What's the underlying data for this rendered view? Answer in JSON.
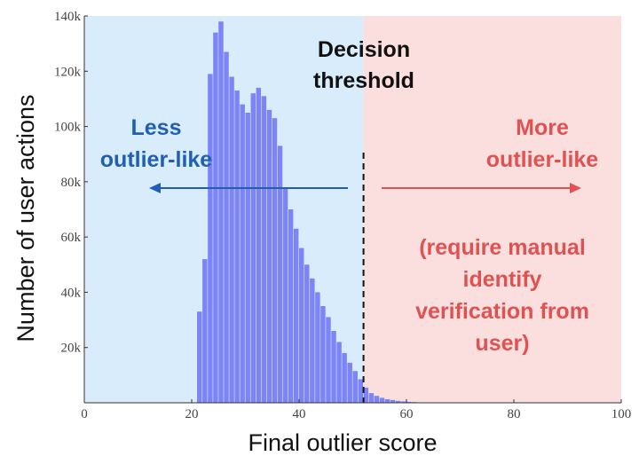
{
  "chart_data": {
    "type": "bar",
    "xlabel": "Final outlier score",
    "ylabel": "Number of user actions",
    "xlim": [
      0,
      100
    ],
    "ylim": [
      0,
      140000
    ],
    "x_ticks": [
      "0",
      "20",
      "40",
      "60",
      "80",
      "100"
    ],
    "y_ticks": [
      "20k",
      "40k",
      "60k",
      "80k",
      "100k",
      "120k",
      "140k"
    ],
    "y_tick_values": [
      20000,
      40000,
      60000,
      80000,
      100000,
      120000,
      140000
    ],
    "bin_width": 1,
    "bins_start": [
      21,
      22,
      23,
      24,
      25,
      26,
      27,
      28,
      29,
      30,
      31,
      32,
      33,
      34,
      35,
      36,
      37,
      38,
      39,
      40,
      41,
      42,
      43,
      44,
      45,
      46,
      47,
      48,
      49,
      50,
      51,
      52,
      53,
      54,
      55,
      56,
      57,
      58,
      59,
      60,
      61,
      62,
      63,
      64
    ],
    "values": [
      33000,
      52000,
      119000,
      134000,
      138000,
      127000,
      118000,
      113000,
      108000,
      105000,
      112000,
      114000,
      111000,
      106000,
      103000,
      93000,
      78000,
      70000,
      63000,
      56000,
      50000,
      45000,
      40000,
      35000,
      31000,
      26000,
      22000,
      18000,
      14500,
      11500,
      8500,
      5500,
      3500,
      2500,
      1800,
      1300,
      1000,
      700,
      500,
      350,
      250,
      150,
      100,
      50
    ],
    "threshold": 52,
    "region_colors": {
      "left": "#d9ecfb",
      "right": "#fbdede"
    },
    "bar_color": "#7d84f5",
    "annotations": {
      "threshold_line1": "Decision",
      "threshold_line2": "threshold",
      "less_line1": "Less",
      "less_line2": "outlier-like",
      "more_line1": "More",
      "more_line2": "outlier-like",
      "note_line1": "(require manual",
      "note_line2": "identify",
      "note_line3": "verification from",
      "note_line4": "user)"
    },
    "colors": {
      "less": "#1f5fb4",
      "more": "#e05252",
      "threshold": "#111111"
    }
  }
}
